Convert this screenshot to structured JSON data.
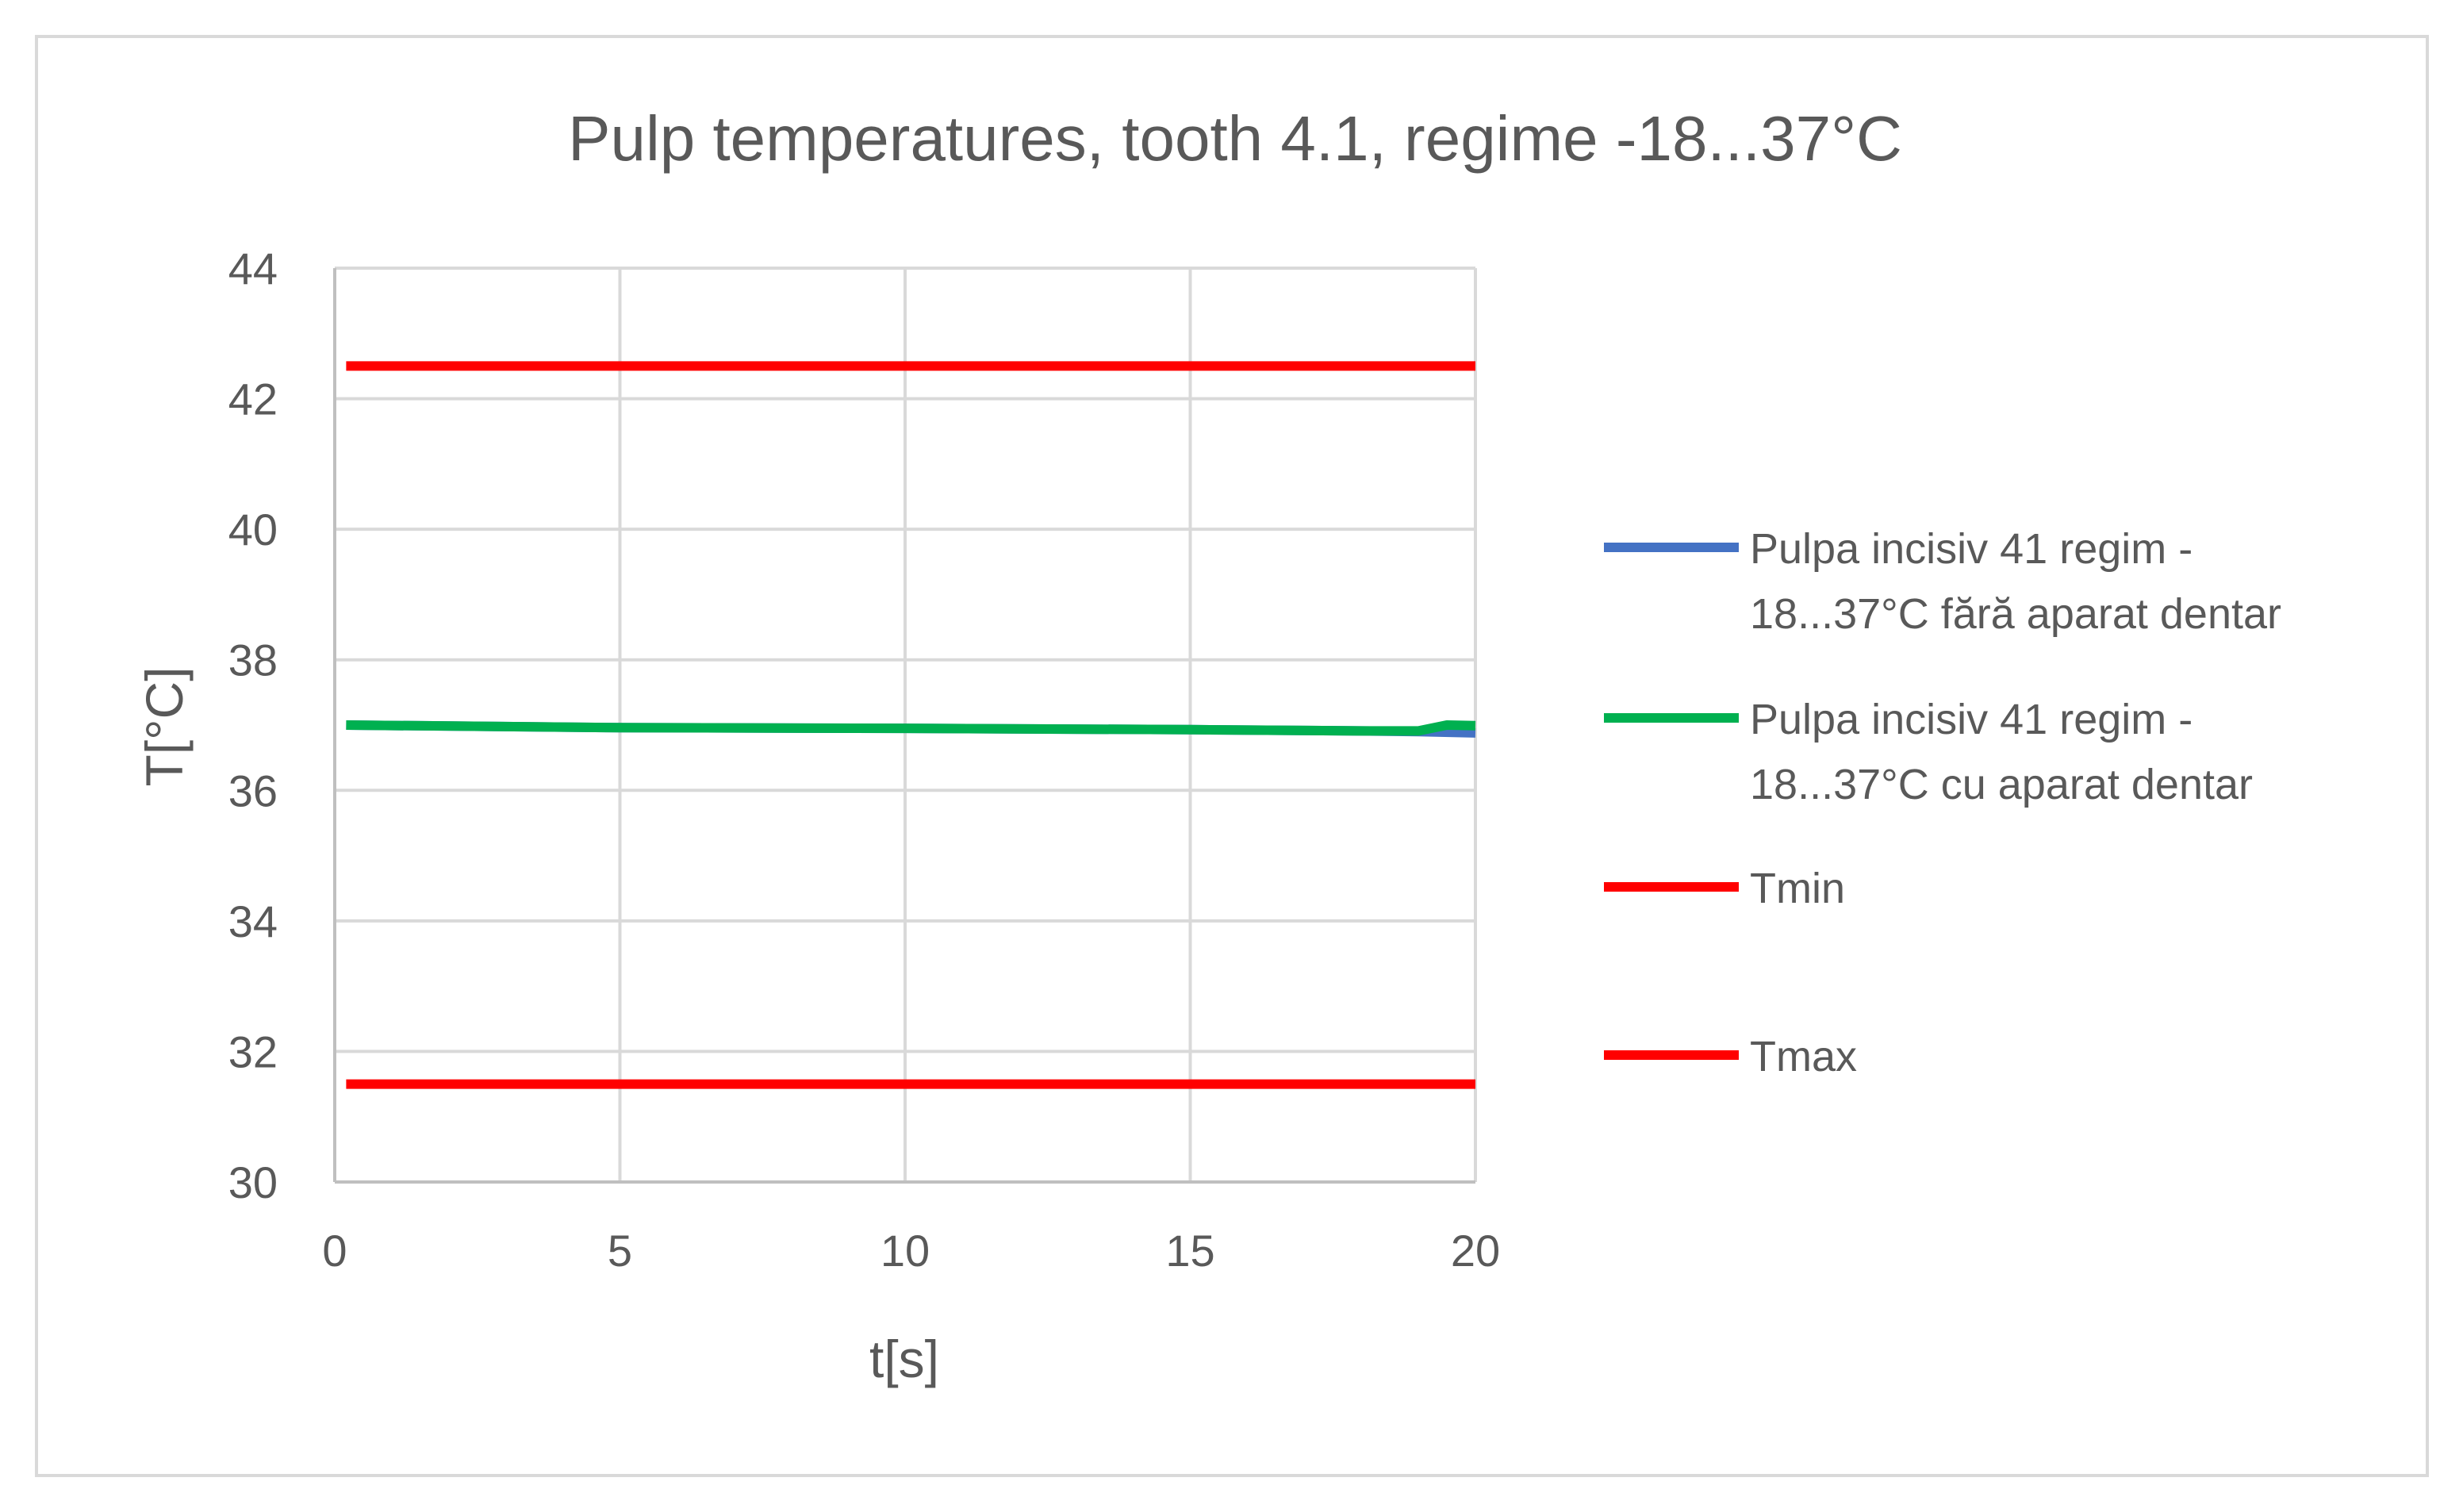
{
  "chart_data": {
    "type": "line",
    "title": "Pulp temperatures, tooth 4.1, regime -18...37°C",
    "xlabel": "t[s]",
    "ylabel": "T[°C]",
    "xlim": [
      0,
      20
    ],
    "ylim": [
      30,
      44
    ],
    "xticks": [
      "0",
      "5",
      "10",
      "15",
      "20"
    ],
    "yticks": [
      "30",
      "32",
      "34",
      "36",
      "38",
      "40",
      "42",
      "44"
    ],
    "grid": true,
    "legend_position": "right",
    "series": [
      {
        "name": "Pulpa incisiv 41 regim -18...37°C  fără aparat dentar",
        "legend_lines": [
          "Pulpa incisiv 41 regim -",
          "18...37°C  fără aparat dentar"
        ],
        "color": "#4472c4",
        "x": [
          0.2,
          5,
          10,
          15,
          18,
          19,
          20
        ],
        "y": [
          37.0,
          36.96,
          36.95,
          36.93,
          36.91,
          36.9,
          36.88
        ]
      },
      {
        "name": "Pulpa incisiv 41 regim -18...37°C  cu aparat dentar",
        "legend_lines": [
          "Pulpa incisiv 41 regim -",
          "18...37°C  cu aparat dentar"
        ],
        "color": "#00b050",
        "x": [
          0.2,
          5,
          10,
          15,
          18,
          19,
          19.5,
          20
        ],
        "y": [
          37.0,
          36.96,
          36.95,
          36.93,
          36.91,
          36.91,
          37.0,
          36.99
        ]
      },
      {
        "name": "Tmin",
        "legend_lines": [
          "Tmin"
        ],
        "color": "#ff0000",
        "x": [
          0.2,
          20
        ],
        "y": [
          42.5,
          42.5
        ]
      },
      {
        "name": "Tmax",
        "legend_lines": [
          "Tmax"
        ],
        "color": "#ff0000",
        "x": [
          0.2,
          20
        ],
        "y": [
          31.5,
          31.5
        ]
      }
    ]
  }
}
